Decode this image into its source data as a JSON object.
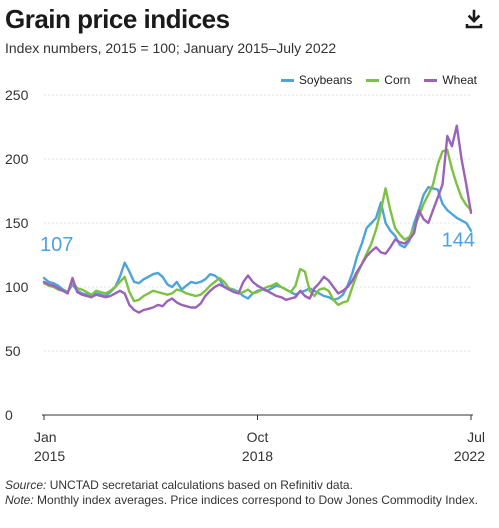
{
  "title": "Grain price indices",
  "subtitle": "Index numbers, 2015 = 100; January 2015–July 2022",
  "download_icon": "download-icon",
  "colors": {
    "soybeans": "#4ea3dc",
    "corn": "#7dc142",
    "wheat": "#9b62b8",
    "grid": "#e3e3e3",
    "axis": "#333333"
  },
  "legend": [
    {
      "name": "Soybeans",
      "color": "#4ea3dc"
    },
    {
      "name": "Corn",
      "color": "#7dc142"
    },
    {
      "name": "Wheat",
      "color": "#9b62b8"
    }
  ],
  "footer": {
    "source_label": "Source:",
    "source_text": " UNCTAD secretariat calculations based on Refinitiv data.",
    "note_label": "Note:",
    "note_text": " Monthly index averages. Price indices correspond to Dow Jones Commodity Index."
  },
  "chart_data": {
    "type": "line",
    "x_start": "2015-01",
    "x_end": "2022-07",
    "x_tick_labels": [
      {
        "month_index": 0,
        "line1": "Jan",
        "line2": "2015"
      },
      {
        "month_index": 45,
        "line1": "Oct",
        "line2": "2018"
      },
      {
        "month_index": 90,
        "line1": "Jul",
        "line2": "2022"
      }
    ],
    "ylim": [
      0,
      250
    ],
    "yticks": [
      0,
      50,
      100,
      150,
      200,
      250
    ],
    "grid": true,
    "legend_position": "top-right",
    "annotations": [
      {
        "series": "Soybeans",
        "text": "107",
        "at": "start"
      },
      {
        "series": "Soybeans",
        "text": "144",
        "at": "end"
      }
    ],
    "series": [
      {
        "name": "Soybeans",
        "values": [
          107,
          104,
          103,
          101,
          98,
          96,
          102,
          97,
          95,
          94,
          92,
          95,
          94,
          93,
          96,
          100,
          108,
          119,
          112,
          104,
          103,
          106,
          108,
          110,
          111,
          108,
          102,
          100,
          104,
          98,
          101,
          104,
          103,
          104,
          106,
          110,
          109,
          106,
          100,
          99,
          98,
          96,
          93,
          91,
          95,
          97,
          98,
          97,
          99,
          101,
          100,
          98,
          96,
          94,
          96,
          97,
          99,
          97,
          95,
          93,
          92,
          90,
          91,
          94,
          101,
          111,
          124,
          134,
          146,
          150,
          154,
          166,
          150,
          144,
          140,
          133,
          131,
          136,
          150,
          160,
          172,
          178,
          177,
          176,
          165,
          160,
          157,
          154,
          152,
          150,
          144
        ]
      },
      {
        "name": "Corn",
        "values": [
          103,
          101,
          100,
          98,
          97,
          96,
          104,
          99,
          98,
          96,
          94,
          97,
          96,
          95,
          97,
          100,
          104,
          108,
          96,
          89,
          90,
          93,
          95,
          97,
          96,
          95,
          94,
          95,
          98,
          97,
          95,
          94,
          93,
          94,
          97,
          101,
          104,
          107,
          104,
          99,
          97,
          95,
          96,
          98,
          95,
          96,
          98,
          100,
          101,
          103,
          100,
          98,
          96,
          101,
          114,
          112,
          97,
          93,
          98,
          99,
          97,
          90,
          86,
          88,
          89,
          100,
          110,
          118,
          126,
          134,
          145,
          160,
          177,
          160,
          146,
          141,
          137,
          139,
          146,
          155,
          165,
          172,
          180,
          196,
          206,
          207,
          192,
          180,
          170,
          164,
          160
        ]
      },
      {
        "name": "Wheat",
        "values": [
          104,
          102,
          101,
          99,
          97,
          95,
          107,
          96,
          94,
          93,
          92,
          94,
          93,
          92,
          93,
          95,
          97,
          95,
          86,
          82,
          80,
          82,
          83,
          84,
          86,
          85,
          89,
          91,
          88,
          86,
          85,
          84,
          84,
          87,
          93,
          97,
          100,
          102,
          100,
          98,
          96,
          95,
          104,
          109,
          104,
          101,
          99,
          97,
          95,
          93,
          92,
          90,
          91,
          92,
          97,
          93,
          91,
          99,
          103,
          108,
          105,
          100,
          95,
          97,
          100,
          105,
          112,
          118,
          124,
          128,
          131,
          127,
          126,
          131,
          137,
          135,
          134,
          137,
          142,
          160,
          153,
          150,
          160,
          170,
          180,
          218,
          210,
          226,
          200,
          180,
          158
        ]
      }
    ]
  }
}
